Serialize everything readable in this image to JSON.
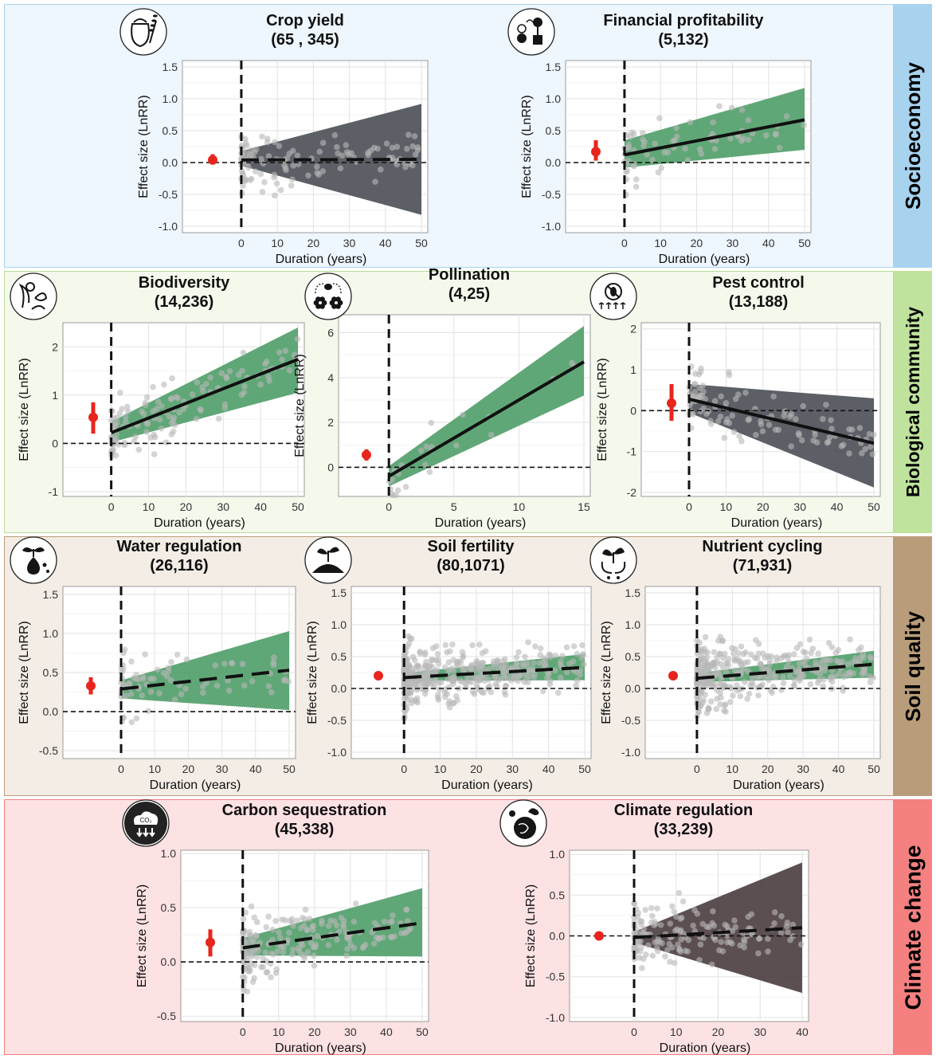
{
  "sections": [
    {
      "label": "Socioeconomy",
      "bg": "#eef6fe",
      "border": "#a8d3ef",
      "side": "#a8d3ef"
    },
    {
      "label": "Biological community",
      "bg": "#f4f9ec",
      "border": "#b8dd98",
      "side": "#bfe39c"
    },
    {
      "label": "Soil quality",
      "bg": "#f3ede6",
      "border": "#b99d7b",
      "side": "#b99d7b"
    },
    {
      "label": "Climate change",
      "bg": "#fde2e4",
      "border": "#f48080",
      "side": "#f48080"
    }
  ],
  "common": {
    "ylabel": "Effect size (LnRR)",
    "xlabel": "Duration (years)"
  },
  "colors": {
    "green_band": "#4f9d68",
    "gray_band": "#4a4f55",
    "gray_band2": "#4a3c3e",
    "point": "#d9534f",
    "summary": "#e8251c",
    "dots": "#b8b8b8"
  },
  "chart_data": [
    {
      "title": "Crop yield",
      "subtitle": "(65 , 345)",
      "icon": "grain-sack-icon",
      "type": "scatter",
      "xlim": [
        0,
        50
      ],
      "ylim": [
        -1.1,
        1.6
      ],
      "xticks": [
        0,
        10,
        20,
        30,
        40,
        50
      ],
      "yticks": [
        "1.5",
        "1.0",
        "0.5",
        "0.0",
        "-0.5",
        "-1.0"
      ],
      "trend": {
        "y0": 0.04,
        "y1": 0.05,
        "dashed": true
      },
      "ci": {
        "lo0": -0.05,
        "hi0": 0.18,
        "lo1": -0.82,
        "hi1": 0.92
      },
      "band": "gray",
      "summary": {
        "mean": 0.04,
        "lo": -0.03,
        "hi": 0.13
      },
      "n": 120
    },
    {
      "title": "Financial profitability",
      "subtitle": "(5,132)",
      "icon": "money-plant-icon",
      "type": "scatter",
      "xlim": [
        0,
        50
      ],
      "ylim": [
        -1.1,
        1.6
      ],
      "xticks": [
        0,
        10,
        20,
        30,
        40,
        50
      ],
      "yticks": [
        "1.5",
        "1.0",
        "0.5",
        "0.0",
        "-0.5",
        "-1.0"
      ],
      "trend": {
        "y0": 0.12,
        "y1": 0.67,
        "dashed": false
      },
      "ci": {
        "lo0": -0.08,
        "hi0": 0.35,
        "lo1": 0.2,
        "hi1": 1.17
      },
      "band": "green",
      "summary": {
        "mean": 0.17,
        "lo": 0.03,
        "hi": 0.35
      },
      "n": 70
    },
    {
      "title": "Biodiversity",
      "subtitle": "(14,236)",
      "icon": "plants-animals-icon",
      "type": "scatter",
      "xlim": [
        0,
        50
      ],
      "ylim": [
        -1.1,
        2.5
      ],
      "xticks": [
        0,
        10,
        20,
        30,
        40,
        50
      ],
      "yticks": [
        "2",
        "1",
        "0",
        "-1"
      ],
      "trend": {
        "y0": 0.22,
        "y1": 1.74,
        "dashed": false
      },
      "ci": {
        "lo0": 0.02,
        "hi0": 0.45,
        "lo1": 1.05,
        "hi1": 2.4
      },
      "band": "green",
      "summary": {
        "mean": 0.54,
        "lo": 0.2,
        "hi": 0.85
      },
      "n": 130
    },
    {
      "title": "Pollination",
      "subtitle": "(4,25)",
      "icon": "pollinator-flowers-icon",
      "type": "scatter",
      "xlim": [
        0,
        15
      ],
      "ylim": [
        -1.3,
        6.8
      ],
      "xticks": [
        0,
        5,
        10,
        15
      ],
      "yticks": [
        "6",
        "4",
        "2",
        "0"
      ],
      "trend": {
        "y0": -0.4,
        "y1": 4.7,
        "dashed": false
      },
      "ci": {
        "lo0": -0.85,
        "hi0": 0.05,
        "lo1": 3.2,
        "hi1": 6.3
      },
      "band": "green",
      "summary": {
        "mean": 0.55,
        "lo": 0.3,
        "hi": 0.8
      },
      "n": 25
    },
    {
      "title": "Pest control",
      "subtitle": "(13,188)",
      "icon": "pest-crossed-icon",
      "type": "scatter",
      "xlim": [
        0,
        50
      ],
      "ylim": [
        -2.1,
        2.15
      ],
      "xticks": [
        0,
        10,
        20,
        30,
        40,
        50
      ],
      "yticks": [
        "2",
        "1",
        "0",
        "-1",
        "-2"
      ],
      "trend": {
        "y0": 0.28,
        "y1": -0.8,
        "dashed": false
      },
      "ci": {
        "lo0": -0.05,
        "hi0": 0.65,
        "lo1": -1.88,
        "hi1": 0.3
      },
      "band": "gray",
      "summary": {
        "mean": 0.18,
        "lo": -0.25,
        "hi": 0.65
      },
      "n": 110
    },
    {
      "title": "Water regulation",
      "subtitle": "(26,116)",
      "icon": "water-drop-sprout-icon",
      "type": "scatter",
      "xlim": [
        0,
        50
      ],
      "ylim": [
        -0.6,
        1.6
      ],
      "xticks": [
        0,
        10,
        20,
        30,
        40,
        50
      ],
      "yticks": [
        "1.5",
        "1.0",
        "0.5",
        "0.0",
        "-0.5"
      ],
      "trend": {
        "y0": 0.29,
        "y1": 0.53,
        "dashed": true
      },
      "ci": {
        "lo0": 0.17,
        "hi0": 0.4,
        "lo1": 0.02,
        "hi1": 1.03
      },
      "band": "green",
      "summary": {
        "mean": 0.33,
        "lo": 0.22,
        "hi": 0.44
      },
      "n": 80
    },
    {
      "title": "Soil fertility",
      "subtitle": "(80,1071)",
      "icon": "soil-mound-sprout-icon",
      "type": "scatter",
      "xlim": [
        0,
        50
      ],
      "ylim": [
        -1.1,
        1.6
      ],
      "xticks": [
        0,
        10,
        20,
        30,
        40,
        50
      ],
      "yticks": [
        "1.5",
        "1.0",
        "0.5",
        "0.0",
        "-0.5",
        "-1.0"
      ],
      "trend": {
        "y0": 0.17,
        "y1": 0.33,
        "dashed": true
      },
      "ci": {
        "lo0": 0.12,
        "hi0": 0.24,
        "lo1": 0.13,
        "hi1": 0.54
      },
      "band": "green",
      "summary": {
        "mean": 0.2,
        "lo": 0.16,
        "hi": 0.24
      },
      "n": 420
    },
    {
      "title": "Nutrient cycling",
      "subtitle": "(71,931)",
      "icon": "nutrient-cycle-sprout-icon",
      "type": "scatter",
      "xlim": [
        0,
        50
      ],
      "ylim": [
        -1.1,
        1.6
      ],
      "xticks": [
        0,
        10,
        20,
        30,
        40,
        50
      ],
      "yticks": [
        "1.5",
        "1.0",
        "0.5",
        "0.0",
        "-0.5",
        "-1.0"
      ],
      "trend": {
        "y0": 0.16,
        "y1": 0.38,
        "dashed": true
      },
      "ci": {
        "lo0": 0.1,
        "hi0": 0.24,
        "lo1": 0.17,
        "hi1": 0.59
      },
      "band": "green",
      "summary": {
        "mean": 0.2,
        "lo": 0.16,
        "hi": 0.24
      },
      "n": 380
    },
    {
      "title": "Carbon sequestration",
      "subtitle": "(45,338)",
      "icon": "co2-cloud-icon",
      "type": "scatter",
      "xlim": [
        0,
        50
      ],
      "ylim": [
        -0.55,
        1.03
      ],
      "xticks": [
        0,
        10,
        20,
        30,
        40,
        50
      ],
      "yticks": [
        "1.0",
        "0.5",
        "0.0",
        "-0.5"
      ],
      "trend": {
        "y0": 0.13,
        "y1": 0.36,
        "dashed": true
      },
      "ci": {
        "lo0": 0.06,
        "hi0": 0.22,
        "lo1": 0.05,
        "hi1": 0.68
      },
      "band": "green",
      "summary": {
        "mean": 0.18,
        "lo": 0.05,
        "hi": 0.3
      },
      "n": 200
    },
    {
      "title": "Climate regulation",
      "subtitle": "(33,239)",
      "icon": "climate-globe-icon",
      "type": "scatter",
      "xlim": [
        0,
        40
      ],
      "ylim": [
        -1.05,
        1.05
      ],
      "xticks": [
        0,
        10,
        20,
        30,
        40
      ],
      "yticks": [
        "1.0",
        "0.5",
        "0.0",
        "-0.5",
        "-1.0"
      ],
      "trend": {
        "y0": -0.02,
        "y1": 0.1,
        "dashed": true
      },
      "ci": {
        "lo0": -0.08,
        "hi0": 0.05,
        "lo1": -0.7,
        "hi1": 0.9
      },
      "band": "gray2",
      "summary": {
        "mean": 0.0,
        "lo": -0.05,
        "hi": 0.05
      },
      "n": 160
    }
  ]
}
